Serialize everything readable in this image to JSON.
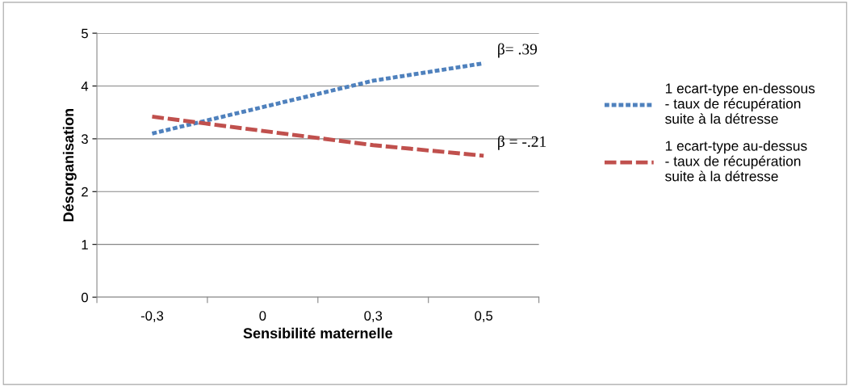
{
  "chart_data": {
    "type": "line",
    "xlabel": "Sensibilité maternelle",
    "ylabel": "Désorganisation",
    "categories": [
      "-0,3",
      "0",
      "0,3",
      "0,5"
    ],
    "series": [
      {
        "name": "1 ecart-type en-dessous\n- taux de récupération\nsuite à la détresse",
        "color": "#4f81bd",
        "values": [
          3.1,
          3.6,
          4.1,
          4.43
        ],
        "line_style": "dashed"
      },
      {
        "name": "1 ecart-type au-dessus\n- taux de récupération\nsuite à la détresse",
        "color": "#c0504d",
        "values": [
          3.42,
          3.15,
          2.88,
          2.68
        ],
        "line_style": "dashed"
      }
    ],
    "ylim": [
      0,
      5
    ],
    "yticks": [
      0,
      1,
      2,
      3,
      4,
      5
    ],
    "grid": "y",
    "legend": "right",
    "marker": "none",
    "annotations": [
      {
        "text": "β= .39",
        "x": "0,5",
        "y": 4.43
      },
      {
        "text": "β = -.21",
        "x": "0,5",
        "y": 2.68
      }
    ]
  }
}
